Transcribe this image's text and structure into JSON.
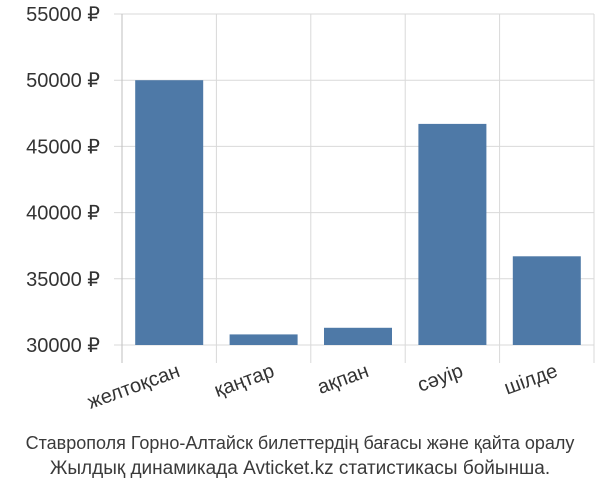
{
  "chart_data": {
    "type": "bar",
    "categories": [
      "желтоқсан",
      "қаңтар",
      "ақпан",
      "сәуір",
      "шілде"
    ],
    "values": [
      50000,
      30800,
      31300,
      46700,
      36700
    ],
    "ylim": [
      30000,
      55000
    ],
    "yticks": [
      30000,
      35000,
      40000,
      45000,
      50000,
      55000
    ],
    "ytick_labels": [
      "30000 ₽",
      "35000 ₽",
      "40000 ₽",
      "45000 ₽",
      "50000 ₽",
      "55000 ₽"
    ],
    "grid": true,
    "bar_color": "#4e79a7"
  },
  "caption": {
    "line1": "Ставрополя Горно-Алтайск билеттердің бағасы және қайта оралу",
    "line2": "Жылдық динамикада Avticket.kz статистикасы бойынша."
  }
}
